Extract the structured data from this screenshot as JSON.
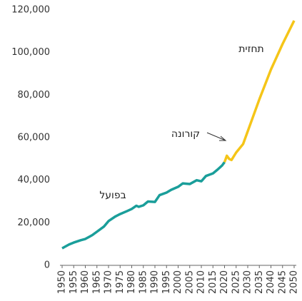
{
  "chart_data": {
    "type": "line",
    "x": [
      1950,
      1953,
      1955,
      1958,
      1960,
      1963,
      1965,
      1968,
      1970,
      1973,
      1975,
      1978,
      1980,
      1982,
      1983,
      1985,
      1987,
      1990,
      1992,
      1995,
      1997,
      2000,
      2002,
      2005,
      2008,
      2010,
      2012,
      2015,
      2017,
      2019,
      2020,
      2021,
      2022,
      2023,
      2025,
      2028,
      2030,
      2035,
      2040,
      2045,
      2050
    ],
    "series": [
      {
        "name": "בפועל",
        "color": "#1a9e9a",
        "values": [
          8000,
          9800,
          10700,
          11800,
          12400,
          14200,
          15800,
          18200,
          20800,
          23000,
          24100,
          25500,
          26500,
          28000,
          27500,
          28200,
          30000,
          29800,
          33000,
          34200,
          35500,
          36900,
          38500,
          38200,
          40000,
          39500,
          42000,
          43200,
          45000,
          47000,
          48500,
          null,
          null,
          null,
          null,
          null,
          null,
          null,
          null,
          null,
          null
        ]
      },
      {
        "name": "תחזית",
        "color": "#f5c518",
        "values": [
          null,
          null,
          null,
          null,
          null,
          null,
          null,
          null,
          null,
          null,
          null,
          null,
          null,
          null,
          null,
          null,
          null,
          null,
          null,
          null,
          null,
          null,
          null,
          null,
          null,
          null,
          null,
          null,
          null,
          null,
          48500,
          51500,
          50000,
          49500,
          53000,
          57000,
          63000,
          78000,
          92000,
          104000,
          115000
        ]
      }
    ],
    "annotations": [
      "קורונה"
    ],
    "xlim": [
      1950,
      2050
    ],
    "ylim": [
      0,
      120000
    ],
    "xticks": [
      1950,
      1955,
      1960,
      1965,
      1970,
      1975,
      1980,
      1985,
      1990,
      1995,
      2000,
      2005,
      2010,
      2015,
      2020,
      2025,
      2030,
      2035,
      2040,
      2045,
      2050
    ],
    "yticks": [
      0,
      {
        "value": 20000,
        "label": "20,000"
      },
      {
        "value": 40000,
        "label": "40,000"
      },
      {
        "value": 60000,
        "label": "60,000"
      },
      {
        "value": 80000,
        "label": "80,000"
      },
      {
        "value": 100000,
        "label": "100,000"
      },
      {
        "value": 120000,
        "label": "120,000"
      }
    ]
  }
}
